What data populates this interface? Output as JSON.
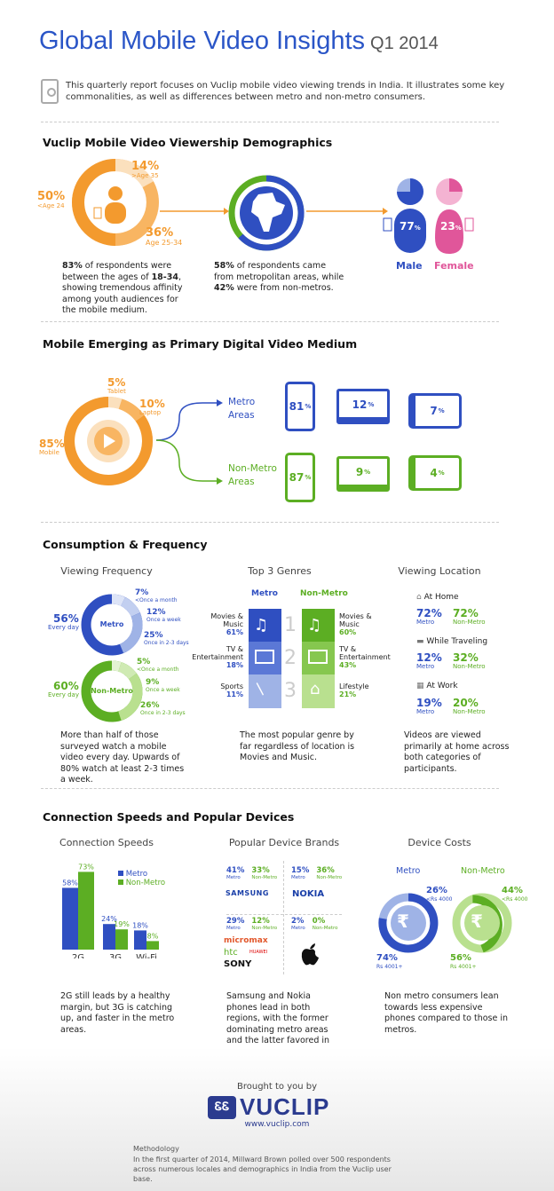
{
  "header": {
    "title": "Global Mobile Video Insights",
    "quarter": "Q1 2014",
    "intro": "This quarterly report focuses on Vuclip mobile video viewing trends in India. It illustrates some key commonalities, as well as differences between metro and non-metro consumers."
  },
  "demographics": {
    "heading": "Vuclip Mobile Video Viewership Demographics",
    "age": [
      {
        "pct": "50%",
        "label": "<Age 24",
        "value": 50
      },
      {
        "pct": "14%",
        "label": ">Age 35",
        "value": 14
      },
      {
        "pct": "36%",
        "label": "Age 25-34",
        "value": 36
      }
    ],
    "age_text": {
      "a": "83%",
      "b": " of respondents were between the ages of ",
      "c": "18-34",
      "d": ", showing tremendous affinity among youth audiences for the mobile medium."
    },
    "metro_text": {
      "a": "58%",
      "b": " of respondents came from metropolitan areas, while ",
      "c": "42%",
      "d": " were from non-metros."
    },
    "gender": [
      {
        "pct": "77",
        "label": "Male",
        "value": 77
      },
      {
        "pct": "23",
        "label": "Female",
        "value": 23
      }
    ],
    "pct_symbol": "%"
  },
  "medium": {
    "heading": "Mobile Emerging as Primary Digital Video Medium",
    "devices": [
      {
        "pct": "85%",
        "label": "Mobile",
        "value": 85
      },
      {
        "pct": "5%",
        "label": "Tablet",
        "value": 5
      },
      {
        "pct": "10%",
        "label": "Laptop",
        "value": 10
      }
    ],
    "metro_label": "Metro Areas",
    "nonmetro_label": "Non-Metro Areas",
    "metro": [
      "81",
      "12",
      "7"
    ],
    "nonmetro": [
      "87",
      "9",
      "4"
    ],
    "pct_symbol": "%"
  },
  "consumption": {
    "heading": "Consumption & Frequency",
    "freq": {
      "title": "Viewing Frequency",
      "metro": {
        "center": "Metro",
        "main_pct": "56%",
        "main_label": "Every day",
        "items": [
          {
            "pct": "7%",
            "label": "<Once a month"
          },
          {
            "pct": "12%",
            "label": "Once a week"
          },
          {
            "pct": "25%",
            "label": "Once in 2-3 days"
          }
        ]
      },
      "nonmetro": {
        "center": "Non-Metro",
        "main_pct": "60%",
        "main_label": "Every day",
        "items": [
          {
            "pct": "5%",
            "label": "<Once a month"
          },
          {
            "pct": "9%",
            "label": "Once a week"
          },
          {
            "pct": "26%",
            "label": "Once in 2-3 days"
          }
        ]
      },
      "text": "More than half of those surveyed watch a mobile video every day. Upwards of 80% watch at least 2-3 times a week."
    },
    "genres": {
      "title": "Top 3 Genres",
      "metro_label": "Metro",
      "nonmetro_label": "Non-Metro",
      "rows": [
        {
          "rank": "1",
          "metro_name": "Movies & Music",
          "metro_pct": "61%",
          "nonmetro_name": "Movies & Music",
          "nonmetro_pct": "60%"
        },
        {
          "rank": "2",
          "metro_name": "TV & Entertainment",
          "metro_pct": "18%",
          "nonmetro_name": "TV & Entertainment",
          "nonmetro_pct": "43%"
        },
        {
          "rank": "3",
          "metro_name": "Sports",
          "metro_pct": "11%",
          "nonmetro_name": "Lifestyle",
          "nonmetro_pct": "21%"
        }
      ],
      "text": "The most popular genre by far regardless of location is Movies and Music."
    },
    "location": {
      "title": "Viewing Location",
      "rows": [
        {
          "label": "At Home",
          "metro": "72%",
          "nonmetro": "72%"
        },
        {
          "label": "While Traveling",
          "metro": "12%",
          "nonmetro": "32%"
        },
        {
          "label": "At Work",
          "metro": "19%",
          "nonmetro": "20%"
        }
      ],
      "metro_word": "Metro",
      "nonmetro_word": "Non-Metro",
      "text": "Videos are viewed primarily at home across both categories of participants."
    }
  },
  "connection": {
    "heading": "Connection Speeds and Popular Devices",
    "speeds": {
      "title": "Connection Speeds",
      "legend_metro": "Metro",
      "legend_nonmetro": "Non-Metro",
      "text": "2G still leads by a healthy margin, but 3G is catching up, and faster in the metro areas."
    },
    "brands": {
      "title": "Popular Device Brands",
      "groups": [
        {
          "metro": "41%",
          "nonmetro": "33%",
          "brands": [
            "SAMSUNG"
          ]
        },
        {
          "metro": "15%",
          "nonmetro": "36%",
          "brands": [
            "NOKIA"
          ]
        },
        {
          "metro": "29%",
          "nonmetro": "12%",
          "brands": [
            "micromax",
            "htc",
            "HUAWEI",
            "SONY"
          ]
        },
        {
          "metro": "2%",
          "nonmetro": "0%",
          "brands": []
        }
      ],
      "metro_word": "Metro",
      "nonmetro_word": "Non-Metro",
      "text": "Samsung and Nokia phones lead in both regions, with the former dominating metro areas and the latter favored in non-metro regions."
    },
    "costs": {
      "title": "Device Costs",
      "metro_label": "Metro",
      "nonmetro_label": "Non-Metro",
      "metro": {
        "low_pct": "74%",
        "low_label": "Rs 4001+",
        "high_pct": "26%",
        "high_label": "<Rs 4000",
        "value_low": 74
      },
      "nonmetro": {
        "low_pct": "56%",
        "low_label": "Rs 4001+",
        "high_pct": "44%",
        "high_label": "<Rs 4000",
        "value_low": 56
      },
      "rupee": "₹",
      "text": "Non metro consumers lean towards less expensive phones compared to those in metros."
    }
  },
  "chart_data": {
    "type": "bar",
    "title": "Connection Speeds",
    "categories": [
      "2G",
      "3G",
      "Wi-Fi"
    ],
    "series": [
      {
        "name": "Metro",
        "values": [
          58,
          24,
          18
        ]
      },
      {
        "name": "Non-Metro",
        "values": [
          73,
          19,
          8
        ]
      }
    ],
    "ylim": [
      0,
      75
    ]
  },
  "footer": {
    "brought": "Brought to you by",
    "logo_mark": "ᏋᏋ",
    "logo": "VUCLIP",
    "url": "www.vuclip.com",
    "methodology_title": "Methodology",
    "methodology": "In the first quarter of 2014, Millward Brown polled over 500 respondents across numerous locales and demographics in India from the Vuclip user base."
  },
  "colors": {
    "blue": "#2f4fc1",
    "orange": "#f39a2e",
    "green": "#5cae23",
    "pink": "#e0569a",
    "lightblue": "#9fb3e6",
    "lightgreen": "#b9e08f",
    "lightorange": "#f9c98e"
  }
}
